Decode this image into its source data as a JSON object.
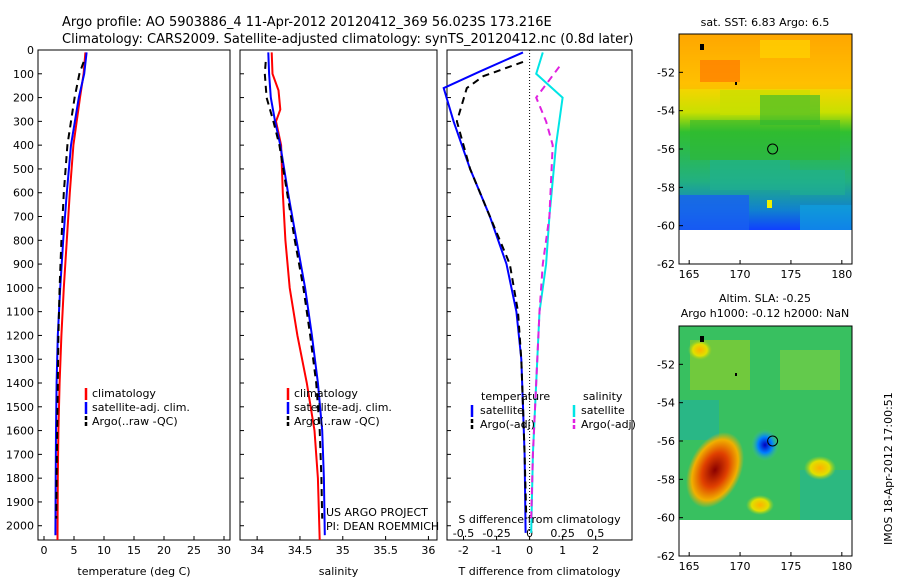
{
  "header": {
    "line1": "Argo profile: AO 5903886_4 11-Apr-2012 20120412_369 56.023S 173.216E",
    "line2": "Climatology: CARS2009. Satellite-adjusted climatology: synTS_20120412.nc (0.8d later)"
  },
  "credits": {
    "project": "US ARGO PROJECT",
    "pi": "PI: DEAN ROEMMICH"
  },
  "stamp": "IMOS 18-Apr-2012 17:00:51",
  "colors": {
    "climatology": "#ff0000",
    "satellite": "#0000ff",
    "argo": "#000000",
    "sal_satellite": "#00e5e5",
    "sal_argo": "#e020e0"
  },
  "depth_axis": {
    "ticks": [
      0,
      100,
      200,
      300,
      400,
      500,
      600,
      700,
      800,
      900,
      1000,
      1100,
      1200,
      1300,
      1400,
      1500,
      1600,
      1700,
      1800,
      1900,
      2000
    ],
    "range": [
      0,
      2060
    ],
    "inverted": true
  },
  "chart_data": [
    {
      "type": "line",
      "xlabel": "temperature (deg C)",
      "xlim": [
        -1,
        31
      ],
      "xticks": [
        0,
        5,
        10,
        15,
        20,
        25,
        30
      ],
      "legend": [
        "climatology",
        "satellite-adj. clim.",
        "Argo(..raw -QC)"
      ],
      "legend_position": "lower-center",
      "series": [
        {
          "name": "climatology",
          "color": "#ff0000",
          "style": "solid",
          "x": [
            6.9,
            6.6,
            6.0,
            4.9,
            4.3,
            3.8,
            3.3,
            2.9,
            2.6,
            2.4,
            2.3,
            2.25
          ],
          "y": [
            10,
            100,
            200,
            400,
            600,
            800,
            1000,
            1200,
            1400,
            1600,
            1800,
            2060
          ]
        },
        {
          "name": "satellite-adj. clim.",
          "color": "#0000ff",
          "style": "solid",
          "x": [
            7.1,
            6.7,
            5.8,
            4.5,
            3.8,
            3.2,
            2.7,
            2.3,
            2.1,
            2.0,
            1.95,
            1.9
          ],
          "y": [
            10,
            100,
            200,
            400,
            600,
            800,
            1000,
            1200,
            1400,
            1600,
            1800,
            2040
          ]
        },
        {
          "name": "Argo(..raw -QC)",
          "color": "#000000",
          "style": "dashed",
          "x": [
            6.6,
            5.9,
            5.1,
            3.9,
            3.3,
            2.9,
            2.6,
            2.4,
            2.3,
            2.2,
            2.1,
            2.05
          ],
          "y": [
            50,
            100,
            200,
            400,
            600,
            800,
            1000,
            1200,
            1400,
            1600,
            1800,
            1970
          ]
        }
      ]
    },
    {
      "type": "line",
      "xlabel": "salinity",
      "xlim": [
        33.8,
        36.1
      ],
      "xticks": [
        34,
        34.5,
        35,
        35.5,
        36
      ],
      "legend": [
        "climatology",
        "satellite-adj. clim.",
        "Argo(..raw -QC)"
      ],
      "legend_position": "lower-center",
      "series": [
        {
          "name": "climatology",
          "color": "#ff0000",
          "style": "solid",
          "x": [
            34.17,
            34.18,
            34.25,
            34.27,
            34.22,
            34.28,
            34.3,
            34.33,
            34.38,
            34.47,
            34.58,
            34.67,
            34.71,
            34.73
          ],
          "y": [
            10,
            100,
            170,
            250,
            300,
            400,
            600,
            800,
            1000,
            1200,
            1400,
            1600,
            1800,
            2060
          ]
        },
        {
          "name": "satellite-adj. clim.",
          "color": "#0000ff",
          "style": "solid",
          "x": [
            34.13,
            34.14,
            34.16,
            34.21,
            34.27,
            34.36,
            34.46,
            34.56,
            34.64,
            34.71,
            34.76,
            34.78,
            34.79
          ],
          "y": [
            10,
            100,
            200,
            300,
            400,
            600,
            800,
            1000,
            1200,
            1400,
            1600,
            1800,
            2040
          ]
        },
        {
          "name": "Argo(..raw -QC)",
          "color": "#000000",
          "style": "dashed",
          "x": [
            34.1,
            34.09,
            34.11,
            34.19,
            34.26,
            34.35,
            34.44,
            34.54,
            34.62,
            34.69,
            34.73,
            34.75,
            34.76
          ],
          "y": [
            50,
            100,
            200,
            300,
            400,
            600,
            800,
            1000,
            1200,
            1400,
            1600,
            1800,
            1970
          ]
        }
      ]
    },
    {
      "type": "line",
      "xlabel": "T difference from climatology",
      "xlabel_top": "S difference from climatology",
      "xlim": [
        -2.5,
        3.1
      ],
      "xticks": [
        -2,
        -1,
        0,
        1,
        2
      ],
      "xticks_top_labels": [
        "-0.5",
        "-0.25",
        "0",
        "0.25",
        "0.5"
      ],
      "xticks_top_at": [
        -2,
        -1,
        0,
        1,
        2
      ],
      "legend_left_title": "temperature",
      "legend_right_title": "salinity",
      "legend_left": [
        "satellite",
        "Argo(-adj)"
      ],
      "legend_right": [
        "satellite",
        "Argo(-adj)"
      ],
      "series": [
        {
          "name": "temperature satellite",
          "color": "#0000ff",
          "style": "solid",
          "x": [
            -0.2,
            -1.5,
            -2.6,
            -2.3,
            -1.8,
            -1.2,
            -0.7,
            -0.4,
            -0.25,
            -0.2,
            -0.15,
            -0.12
          ],
          "y": [
            10,
            90,
            160,
            300,
            500,
            700,
            900,
            1100,
            1300,
            1500,
            1700,
            2030
          ]
        },
        {
          "name": "temperature Argo(-adj)",
          "color": "#000000",
          "style": "dashed",
          "x": [
            -0.2,
            -1.4,
            -1.9,
            -2.2,
            -1.8,
            -1.2,
            -0.6,
            -0.35,
            -0.25,
            -0.2,
            -0.15,
            -0.1
          ],
          "y": [
            50,
            110,
            160,
            300,
            500,
            700,
            900,
            1100,
            1300,
            1500,
            1700,
            1970
          ]
        },
        {
          "name": "salinity satellite",
          "color": "#00e5e5",
          "style": "solid",
          "x": [
            0.4,
            0.2,
            1.0,
            0.8,
            0.6,
            0.5,
            0.3,
            0.2,
            0.1,
            0.05
          ],
          "y": [
            10,
            100,
            200,
            400,
            700,
            900,
            1100,
            1400,
            1700,
            2030
          ]
        },
        {
          "name": "salinity Argo(-adj)",
          "color": "#e020e0",
          "style": "dashed",
          "x": [
            0.9,
            0.2,
            0.5,
            0.7,
            0.6,
            0.4,
            0.3,
            0.2,
            0.1,
            0.05
          ],
          "y": [
            70,
            200,
            300,
            400,
            700,
            900,
            1100,
            1400,
            1700,
            1970
          ]
        }
      ]
    },
    {
      "type": "heatmap",
      "title": "sat. SST: 6.83 Argo: 6.5",
      "xlim": [
        164,
        181
      ],
      "ylim": [
        -62,
        -50
      ],
      "xticks": [
        165,
        170,
        175,
        180
      ],
      "yticks": [
        -52,
        -54,
        -56,
        -58,
        -60,
        -62
      ],
      "marker": {
        "lon": 173.2,
        "lat": -56.0
      }
    },
    {
      "type": "heatmap",
      "title": "Altim. SLA: -0.25",
      "subtitle": "Argo h1000: -0.12 h2000: NaN",
      "xlim": [
        164,
        181
      ],
      "ylim": [
        -62,
        -50
      ],
      "xticks": [
        165,
        170,
        175,
        180
      ],
      "yticks": [
        -52,
        -54,
        -56,
        -58,
        -60,
        -62
      ],
      "marker": {
        "lon": 173.2,
        "lat": -56.0
      }
    }
  ]
}
